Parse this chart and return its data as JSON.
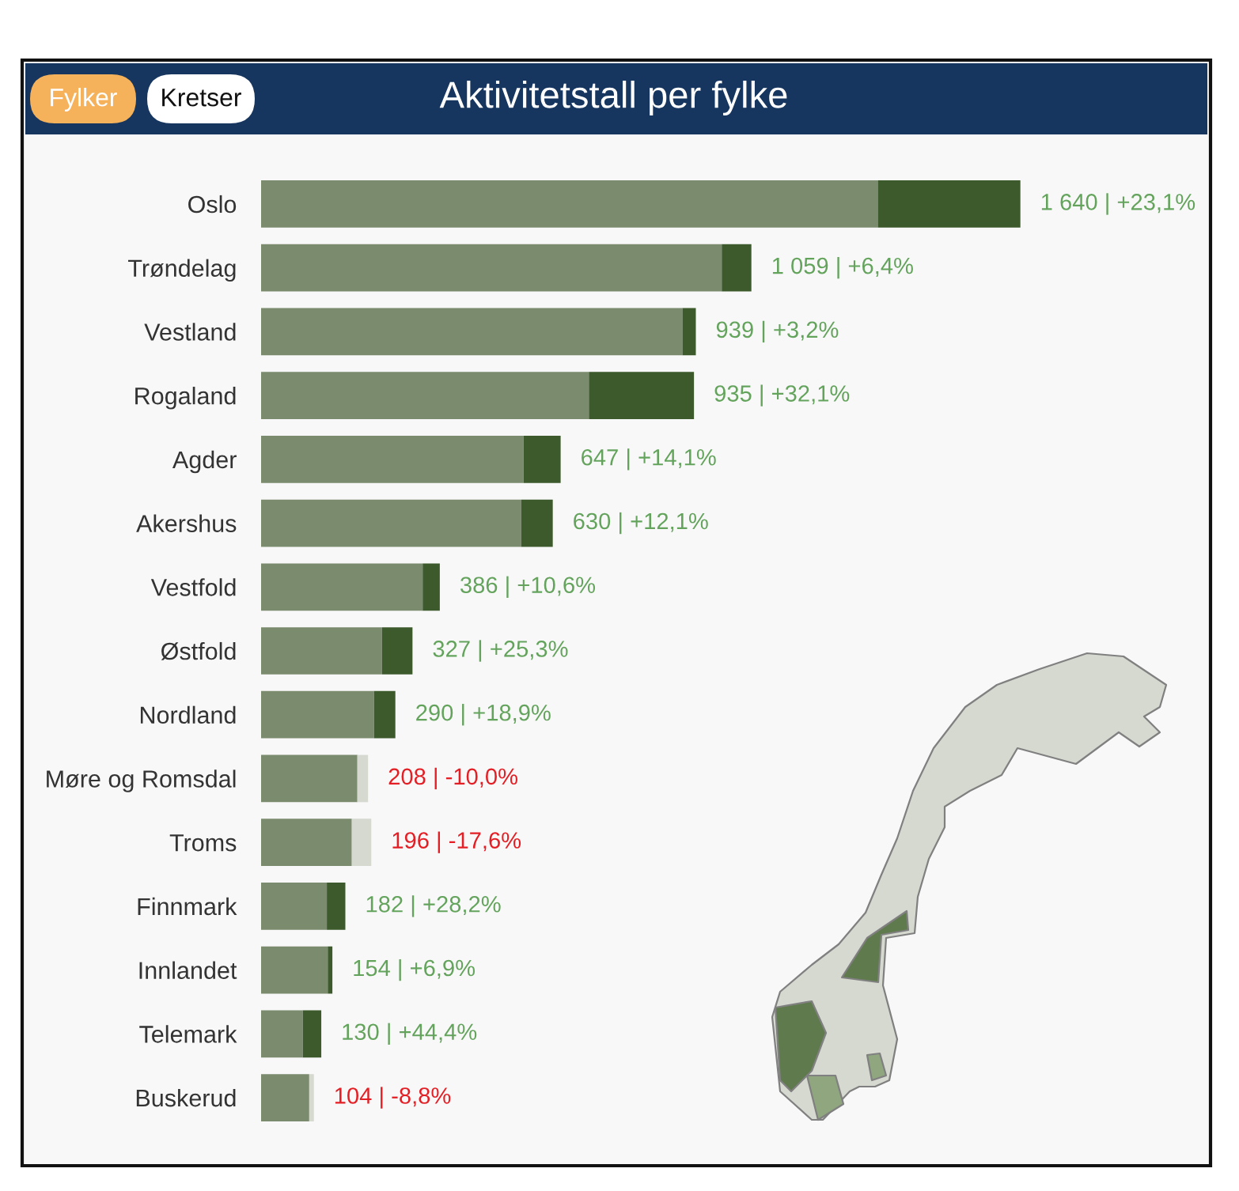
{
  "chart_data": {
    "type": "bar",
    "orientation": "horizontal",
    "stacked": true,
    "title": "Aktivitetstall per fylke",
    "annotations": [
      "Fylker",
      "Kretser"
    ],
    "categories": [
      "Oslo",
      "Trøndelag",
      "Vestland",
      "Rogaland",
      "Agder",
      "Akershus",
      "Vestfold",
      "Østfold",
      "Nordland",
      "Møre og Romsdal",
      "Troms",
      "Finnmark",
      "Innlandet",
      "Telemark",
      "Buskerud"
    ],
    "series": [
      {
        "color": "#7b8b6e",
        "values": [
          1332,
          995,
          910,
          708,
          567,
          562,
          349,
          261,
          244,
          208,
          196,
          142,
          144,
          90,
          104
        ],
        "value_labels": [
          null,
          null,
          null,
          null,
          null,
          null,
          null,
          null,
          null,
          "208 | -10,0%",
          "196 | -17,6%",
          null,
          null,
          null,
          "104 | -8,8%"
        ]
      },
      {
        "color": "#3c5a2c",
        "values": [
          308,
          64,
          29,
          227,
          80,
          68,
          37,
          66,
          46,
          null,
          null,
          40,
          10,
          40,
          null
        ]
      },
      {
        "color": "#d5d9d0",
        "values": [
          null,
          null,
          null,
          null,
          null,
          null,
          null,
          null,
          null,
          23,
          42,
          null,
          null,
          null,
          10
        ]
      }
    ],
    "totals": [
      "1 640 | +23,1%",
      "1 059 | +6,4%",
      "939 | +3,2%",
      "935 | +32,1%",
      "647 | +14,1%",
      "630 | +12,1%",
      "386 | +10,6%",
      "327 | +25,3%",
      "290 | +18,9%",
      null,
      null,
      "182 | +28,2%",
      "154 | +6,9%",
      "130 | +44,4%",
      null
    ]
  }
}
